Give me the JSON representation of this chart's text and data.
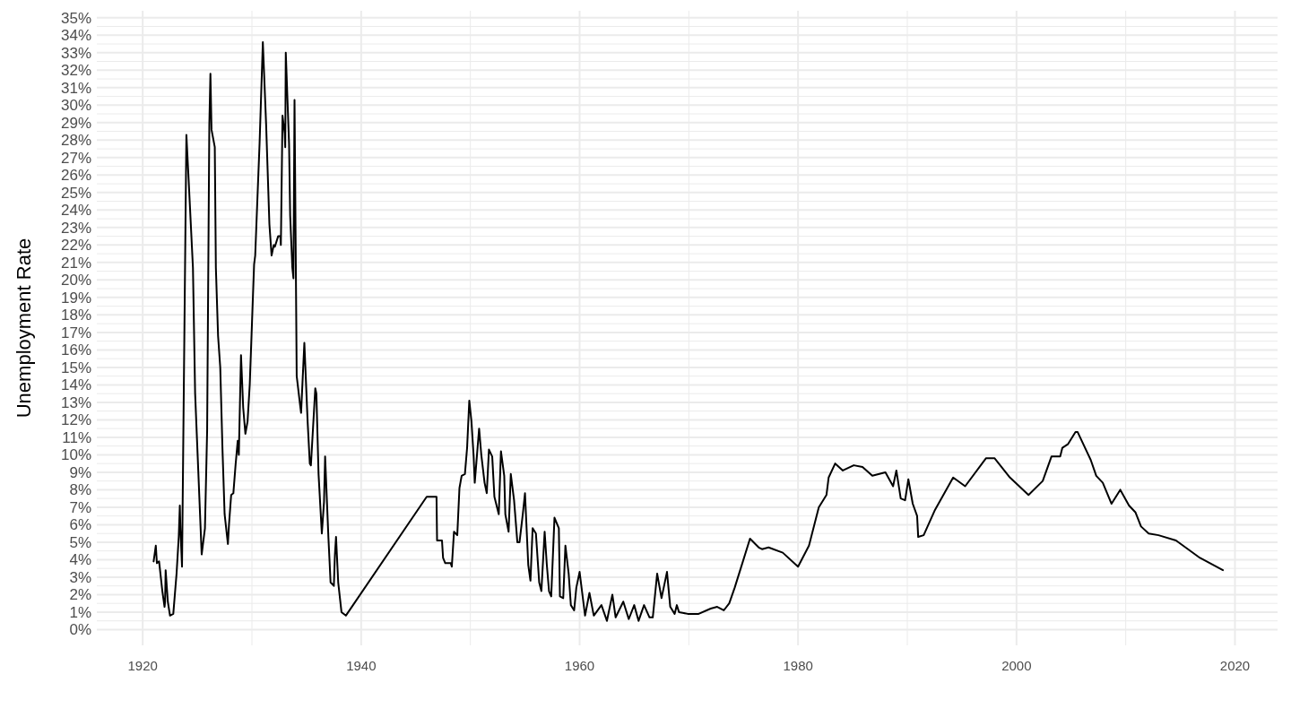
{
  "chart_data": {
    "type": "line",
    "ylabel": "Unemployment Rate",
    "xlim": [
      1915.8,
      2023.9
    ],
    "xticks": [
      1920,
      1940,
      1960,
      1980,
      2000,
      2020
    ],
    "ylim": [
      -0.9,
      35.4
    ],
    "yticks": [
      {
        "value": 0,
        "label": "0%"
      },
      {
        "value": 1,
        "label": "1%"
      },
      {
        "value": 2,
        "label": "2%"
      },
      {
        "value": 3,
        "label": "3%"
      },
      {
        "value": 4,
        "label": "4%"
      },
      {
        "value": 5,
        "label": "5%"
      },
      {
        "value": 6,
        "label": "6%"
      },
      {
        "value": 7,
        "label": "7%"
      },
      {
        "value": 8,
        "label": "8%"
      },
      {
        "value": 9,
        "label": "9%"
      },
      {
        "value": 10,
        "label": "10%"
      },
      {
        "value": 11,
        "label": "11%"
      },
      {
        "value": 12,
        "label": "12%"
      },
      {
        "value": 13,
        "label": "13%"
      },
      {
        "value": 14,
        "label": "14%"
      },
      {
        "value": 15,
        "label": "15%"
      },
      {
        "value": 16,
        "label": "16%"
      },
      {
        "value": 17,
        "label": "17%"
      },
      {
        "value": 18,
        "label": "18%"
      },
      {
        "value": 19,
        "label": "19%"
      },
      {
        "value": 20,
        "label": "20%"
      },
      {
        "value": 21,
        "label": "21%"
      },
      {
        "value": 22,
        "label": "22%"
      },
      {
        "value": 23,
        "label": "23%"
      },
      {
        "value": 24,
        "label": "24%"
      },
      {
        "value": 25,
        "label": "25%"
      },
      {
        "value": 26,
        "label": "26%"
      },
      {
        "value": 27,
        "label": "27%"
      },
      {
        "value": 28,
        "label": "28%"
      },
      {
        "value": 29,
        "label": "29%"
      },
      {
        "value": 30,
        "label": "30%"
      },
      {
        "value": 31,
        "label": "31%"
      },
      {
        "value": 32,
        "label": "32%"
      },
      {
        "value": 33,
        "label": "33%"
      },
      {
        "value": 34,
        "label": "34%"
      },
      {
        "value": 35,
        "label": "35%"
      }
    ],
    "grid": true,
    "series": [
      {
        "color": "#000000",
        "x": [
          1921.0,
          1921.2,
          1921.3,
          1921.5,
          1921.8,
          1922.0,
          1922.05,
          1922.1,
          1922.3,
          1922.5,
          1922.8,
          1923.1,
          1923.3,
          1923.4,
          1923.45,
          1923.6,
          1924.0,
          1924.2,
          1924.6,
          1924.8,
          1925.4,
          1925.7,
          1925.9,
          1926.1,
          1926.2,
          1926.3,
          1926.6,
          1926.7,
          1926.9,
          1927.1,
          1927.3,
          1927.5,
          1927.8,
          1927.9,
          1928.1,
          1928.3,
          1928.5,
          1928.7,
          1928.8,
          1929.0,
          1929.2,
          1929.4,
          1929.6,
          1929.8,
          1930.2,
          1930.3,
          1930.7,
          1931.0,
          1931.3,
          1931.6,
          1931.8,
          1932.0,
          1932.1,
          1932.4,
          1932.6,
          1932.65,
          1932.8,
          1933.0,
          1933.05,
          1933.1,
          1933.4,
          1933.5,
          1933.7,
          1933.8,
          1933.9,
          1934.1,
          1934.4,
          1934.5,
          1934.8,
          1935.1,
          1935.3,
          1935.4,
          1935.8,
          1935.9,
          1936.1,
          1936.4,
          1936.6,
          1936.7,
          1937.0,
          1937.2,
          1937.5,
          1937.6,
          1937.7,
          1937.9,
          1938.2,
          1938.6,
          1946.0,
          1946.9,
          1946.95,
          1947.4,
          1947.5,
          1947.7,
          1948.2,
          1948.3,
          1948.5,
          1948.8,
          1949.0,
          1949.2,
          1949.5,
          1949.7,
          1949.9,
          1950.1,
          1950.3,
          1950.4,
          1950.8,
          1951.0,
          1951.3,
          1951.5,
          1951.7,
          1952.0,
          1952.2,
          1952.6,
          1952.8,
          1953.1,
          1953.2,
          1953.5,
          1953.7,
          1954.0,
          1954.3,
          1954.5,
          1954.8,
          1955.0,
          1955.3,
          1955.5,
          1955.7,
          1956.0,
          1956.3,
          1956.5,
          1956.8,
          1957.0,
          1957.2,
          1957.4,
          1957.7,
          1958.1,
          1958.2,
          1958.5,
          1958.7,
          1959.0,
          1959.2,
          1959.5,
          1959.7,
          1960.0,
          1960.5,
          1960.9,
          1961.3,
          1962.0,
          1962.5,
          1963.0,
          1963.3,
          1964.0,
          1964.5,
          1965.0,
          1965.4,
          1965.9,
          1966.4,
          1966.7,
          1967.1,
          1967.5,
          1968.0,
          1968.3,
          1968.7,
          1968.9,
          1969.1,
          1969.9,
          1970.9,
          1972.0,
          1972.6,
          1973.2,
          1973.7,
          1974.2,
          1974.9,
          1975.6,
          1976.4,
          1976.7,
          1977.3,
          1978.6,
          1980.0,
          1981.0,
          1981.9,
          1982.6,
          1982.8,
          1983.4,
          1984.1,
          1985.1,
          1985.9,
          1986.8,
          1988.0,
          1988.7,
          1989.0,
          1989.4,
          1989.8,
          1990.1,
          1990.5,
          1990.9,
          1991.0,
          1991.5,
          1992.5,
          1994.2,
          1995.3,
          1997.2,
          1998.0,
          1999.4,
          2001.1,
          2002.4,
          2003.2,
          2004.0,
          2004.2,
          2004.7,
          2005.4,
          2005.6,
          2006.8,
          2007.3,
          2007.9,
          2008.7,
          2009.5,
          2010.3,
          2010.9,
          2011.4,
          2012.1,
          2013.0,
          2014.6,
          2016.8,
          2018.9
        ],
        "values": [
          3.9,
          4.8,
          3.8,
          3.9,
          2.2,
          1.3,
          1.6,
          3.4,
          1.6,
          0.8,
          0.9,
          3.2,
          5.3,
          7.1,
          5.8,
          3.6,
          28.3,
          25.8,
          20.7,
          13.5,
          4.3,
          5.8,
          11.4,
          28.9,
          31.8,
          28.6,
          27.6,
          20.7,
          16.8,
          15.0,
          10.4,
          6.6,
          4.9,
          6.0,
          7.7,
          7.8,
          9.4,
          10.8,
          10.0,
          15.7,
          12.7,
          11.2,
          11.9,
          14.0,
          20.9,
          21.4,
          27.8,
          33.6,
          28.9,
          23.2,
          21.4,
          22.0,
          21.9,
          22.5,
          22.5,
          22.0,
          29.4,
          28.4,
          27.6,
          33.0,
          27.8,
          23.7,
          20.7,
          20.1,
          30.3,
          14.5,
          12.9,
          12.4,
          16.4,
          11.9,
          9.5,
          9.4,
          13.8,
          13.5,
          8.9,
          5.5,
          7.3,
          9.9,
          5.3,
          2.7,
          2.5,
          4.3,
          5.3,
          2.7,
          1.0,
          0.8,
          7.6,
          7.6,
          5.1,
          5.1,
          4.1,
          3.8,
          3.8,
          3.6,
          5.6,
          5.4,
          8.1,
          8.8,
          8.9,
          10.4,
          13.1,
          11.9,
          9.9,
          8.4,
          11.5,
          10.0,
          8.4,
          7.8,
          10.3,
          9.9,
          7.6,
          6.6,
          10.2,
          8.8,
          6.6,
          5.6,
          8.9,
          7.4,
          5.0,
          5.0,
          6.6,
          7.8,
          3.7,
          2.8,
          5.8,
          5.5,
          2.7,
          2.2,
          5.6,
          3.7,
          2.2,
          1.9,
          6.4,
          5.8,
          1.9,
          1.8,
          4.8,
          3.2,
          1.4,
          1.1,
          2.4,
          3.3,
          0.8,
          2.1,
          0.8,
          1.4,
          0.5,
          2.0,
          0.7,
          1.6,
          0.6,
          1.4,
          0.5,
          1.4,
          0.7,
          0.7,
          3.2,
          1.8,
          3.3,
          1.3,
          0.9,
          1.4,
          1.0,
          0.9,
          0.9,
          1.2,
          1.3,
          1.1,
          1.5,
          2.4,
          3.8,
          5.2,
          4.7,
          4.6,
          4.7,
          4.4,
          3.6,
          4.8,
          7.0,
          7.7,
          8.7,
          9.5,
          9.1,
          9.4,
          9.3,
          8.8,
          9.0,
          8.2,
          9.1,
          7.5,
          7.4,
          8.6,
          7.2,
          6.5,
          5.3,
          5.4,
          6.8,
          8.7,
          8.2,
          9.8,
          9.8,
          8.7,
          7.7,
          8.5,
          9.9,
          9.9,
          10.4,
          10.6,
          11.3,
          11.3,
          9.7,
          8.8,
          8.4,
          7.2,
          8.0,
          7.1,
          6.7,
          5.9,
          5.5,
          5.4,
          5.1,
          4.1,
          3.4
        ]
      }
    ]
  }
}
